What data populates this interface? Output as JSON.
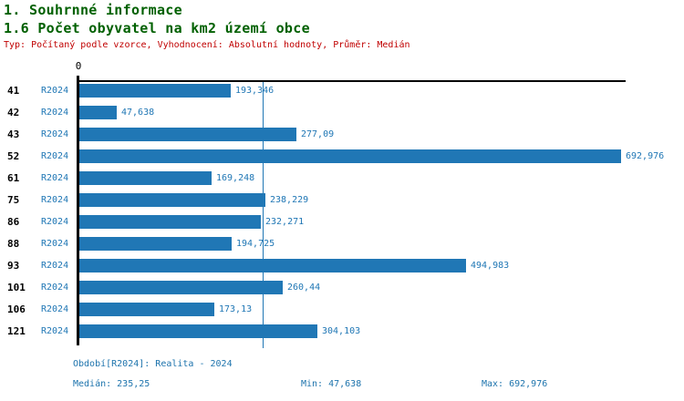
{
  "header": {
    "title1": "1. Souhrnné informace",
    "title2": "1.6 Počet obyvatel na km2 území obce",
    "meta": "Typ: Počítaný podle vzorce, Vyhodnocení: Absolutní hodnoty, Průměr: Medián"
  },
  "chart_data": {
    "type": "bar",
    "orientation": "horizontal",
    "title": "1.6 Počet obyvatel na km2 území obce",
    "series_label": "R2024",
    "categories": [
      "41",
      "42",
      "43",
      "52",
      "61",
      "75",
      "86",
      "88",
      "93",
      "101",
      "106",
      "121"
    ],
    "values": [
      193.346,
      47.638,
      277.09,
      692.976,
      169.248,
      238.229,
      232.271,
      194.725,
      494.983,
      260.44,
      173.13,
      304.103
    ],
    "value_labels": [
      "193,346",
      "47,638",
      "277,09",
      "692,976",
      "169,248",
      "238,229",
      "232,271",
      "194,725",
      "494,983",
      "260,44",
      "173,13",
      "304,103"
    ],
    "xlim": [
      0,
      700
    ],
    "xticks": [
      "0"
    ],
    "zero_tick_label": "0",
    "grid": false,
    "median_value": 235.25,
    "median_label": "235,25",
    "bar_color": "#2077b5",
    "median_line_color": "#2077b5",
    "legend_position": "none"
  },
  "footer": {
    "period": "Období[R2024]: Realita - 2024",
    "median": "Medián: 235,25",
    "min": "Min: 47,638",
    "max": "Max: 692,976"
  },
  "colors": {
    "title_green": "#006000",
    "meta_red": "#c00000",
    "bar_blue": "#2077b5",
    "footer_blue": "#1e74ad",
    "axis_black": "#000000"
  }
}
